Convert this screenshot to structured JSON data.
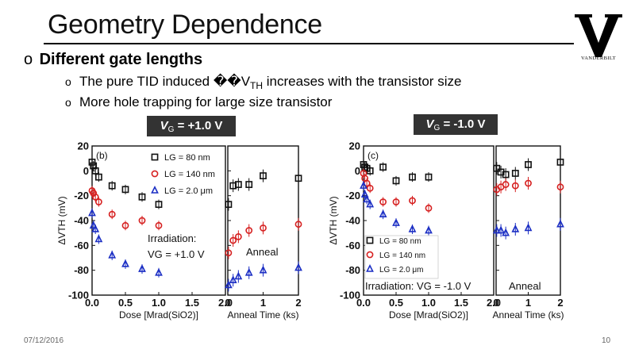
{
  "slide": {
    "title": "Geometry Dependence",
    "logo_text": "VANDERBILT",
    "bullet_main_mark": "o",
    "bullet_main": "Different gate lengths",
    "sub_bullets": [
      {
        "mark": "o",
        "pre": "The pure TID induced ",
        "glyph": "��V",
        "sub": "TH",
        "post": " increases with the transistor size"
      },
      {
        "mark": "o",
        "text": "More hole trapping for large size transistor"
      }
    ],
    "vg_labels": [
      {
        "v": "V",
        "sub": "G",
        "rest": " = +1.0 V"
      },
      {
        "v": "V",
        "sub": "G",
        "rest": " = -1.0 V"
      }
    ],
    "footer_date": "07/12/2016",
    "page_number": "10"
  },
  "chart_data": [
    {
      "type": "scatter",
      "panel_label": "(b)",
      "ylabel": "ΔVTH (mV)",
      "ylim": [
        -100,
        20
      ],
      "yticks": [
        "20",
        "0",
        "-20",
        "-40",
        "-60",
        "-80",
        "-100"
      ],
      "left": {
        "xlabel": "Dose [Mrad(SiO2)]",
        "xlim": [
          0,
          2.0
        ],
        "xticks": [
          "0.0",
          "0.5",
          "1.0",
          "1.5",
          "2.0"
        ]
      },
      "right": {
        "xlabel": "Anneal Time (ks)",
        "xlim": [
          0,
          2
        ],
        "xticks": [
          "0",
          "1",
          "2"
        ]
      },
      "legend": [
        "LG = 80 nm",
        "LG = 140 nm",
        "LG = 2.0 μm"
      ],
      "annotations": [
        "Irradiation:",
        "VG = +1.0 V",
        "Anneal"
      ],
      "series": [
        {
          "name": "LG = 80 nm",
          "color": "#111111",
          "marker": "square",
          "dose": [
            [
              0,
              7
            ],
            [
              0.02,
              4
            ],
            [
              0.05,
              0
            ],
            [
              0.1,
              -5
            ],
            [
              0.3,
              -12
            ],
            [
              0.5,
              -15
            ],
            [
              0.75,
              -21
            ],
            [
              1.0,
              -27
            ]
          ],
          "anneal": [
            [
              0.02,
              -27
            ],
            [
              0.15,
              -12
            ],
            [
              0.3,
              -11
            ],
            [
              0.6,
              -11
            ],
            [
              1.0,
              -4
            ],
            [
              2.0,
              -6
            ]
          ]
        },
        {
          "name": "LG = 140 nm",
          "color": "#d62020",
          "marker": "circle",
          "dose": [
            [
              0,
              -16
            ],
            [
              0.02,
              -18
            ],
            [
              0.05,
              -21
            ],
            [
              0.1,
              -25
            ],
            [
              0.3,
              -35
            ],
            [
              0.5,
              -44
            ],
            [
              0.75,
              -40
            ],
            [
              1.0,
              -44
            ]
          ],
          "anneal": [
            [
              0.02,
              -66
            ],
            [
              0.15,
              -56
            ],
            [
              0.3,
              -53
            ],
            [
              0.6,
              -48
            ],
            [
              1.0,
              -46
            ],
            [
              2.0,
              -43
            ]
          ]
        },
        {
          "name": "LG = 2.0 μm",
          "color": "#1c2fc4",
          "marker": "triangle",
          "dose": [
            [
              0,
              -34
            ],
            [
              0.02,
              -44
            ],
            [
              0.05,
              -47
            ],
            [
              0.1,
              -55
            ],
            [
              0.3,
              -68
            ],
            [
              0.5,
              -75
            ],
            [
              0.75,
              -79
            ],
            [
              1.0,
              -82
            ]
          ],
          "anneal": [
            [
              0.02,
              -92
            ],
            [
              0.15,
              -88
            ],
            [
              0.3,
              -85
            ],
            [
              0.6,
              -82
            ],
            [
              1.0,
              -80
            ],
            [
              2.0,
              -78
            ]
          ]
        }
      ]
    },
    {
      "type": "scatter",
      "panel_label": "(c)",
      "ylabel": "ΔVTH (mV)",
      "ylim": [
        -100,
        20
      ],
      "yticks": [
        "20",
        "0",
        "-20",
        "-40",
        "-60",
        "-80",
        "-100"
      ],
      "left": {
        "xlabel": "Dose [Mrad(SiO2)]",
        "xlim": [
          0,
          2.0
        ],
        "xticks": [
          "0.0",
          "0.5",
          "1.0",
          "1.5",
          "2.0"
        ]
      },
      "right": {
        "xlabel": "Anneal Time (ks)",
        "xlim": [
          0,
          2
        ],
        "xticks": [
          "0",
          "1",
          "2"
        ]
      },
      "legend": [
        "LG = 80 nm",
        "LG = 140 nm",
        "LG = 2.0 μm"
      ],
      "annotations": [
        "Irradiation: VG = -1.0 V",
        "Anneal"
      ],
      "series": [
        {
          "name": "LG = 80 nm",
          "color": "#111111",
          "marker": "square",
          "dose": [
            [
              0,
              5
            ],
            [
              0.02,
              3
            ],
            [
              0.05,
              2
            ],
            [
              0.1,
              0
            ],
            [
              0.3,
              3
            ],
            [
              0.5,
              -8
            ],
            [
              0.75,
              -5
            ],
            [
              1.0,
              -5
            ]
          ],
          "anneal": [
            [
              0.02,
              2
            ],
            [
              0.15,
              -1
            ],
            [
              0.3,
              -3
            ],
            [
              0.6,
              -2
            ],
            [
              1.0,
              5
            ],
            [
              2.0,
              7
            ]
          ]
        },
        {
          "name": "LG = 140 nm",
          "color": "#d62020",
          "marker": "circle",
          "dose": [
            [
              0,
              -2
            ],
            [
              0.02,
              -6
            ],
            [
              0.05,
              -10
            ],
            [
              0.1,
              -14
            ],
            [
              0.3,
              -25
            ],
            [
              0.5,
              -25
            ],
            [
              0.75,
              -24
            ],
            [
              1.0,
              -30
            ]
          ],
          "anneal": [
            [
              0.02,
              -15
            ],
            [
              0.15,
              -13
            ],
            [
              0.3,
              -11
            ],
            [
              0.6,
              -12
            ],
            [
              1.0,
              -10
            ],
            [
              2.0,
              -13
            ]
          ]
        },
        {
          "name": "LG = 2.0 μm",
          "color": "#1c2fc4",
          "marker": "triangle",
          "dose": [
            [
              0,
              -12
            ],
            [
              0.02,
              -19
            ],
            [
              0.05,
              -23
            ],
            [
              0.1,
              -27
            ],
            [
              0.3,
              -35
            ],
            [
              0.5,
              -42
            ],
            [
              0.75,
              -47
            ],
            [
              1.0,
              -48
            ]
          ],
          "anneal": [
            [
              0.02,
              -48
            ],
            [
              0.15,
              -48
            ],
            [
              0.3,
              -50
            ],
            [
              0.6,
              -47
            ],
            [
              1.0,
              -46
            ],
            [
              2.0,
              -43
            ]
          ]
        }
      ]
    }
  ]
}
